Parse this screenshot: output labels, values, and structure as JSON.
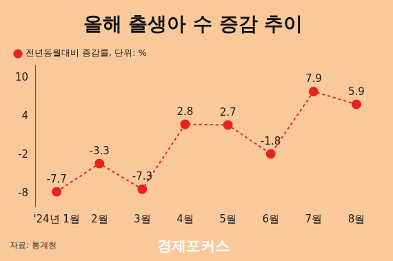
{
  "chart_data": {
    "type": "line",
    "title": "올해 출생아 수 증감 추이",
    "categories": [
      "'24년 1월",
      "2월",
      "3월",
      "4월",
      "5월",
      "6월",
      "7월",
      "8월"
    ],
    "series": [
      {
        "name": "전년동월대비 증감률, 단위: %",
        "color": "#e8231f",
        "values": [
          -7.7,
          -3.3,
          -7.3,
          2.8,
          2.7,
          -1.8,
          7.9,
          5.9
        ]
      }
    ],
    "ylim": [
      -10,
      12
    ],
    "yticks": [
      -8,
      -2,
      4,
      10
    ],
    "grid": false,
    "legend": "top-left",
    "data_labels": true,
    "marker": "circle",
    "line_style": "dashed",
    "source": "자료: 통계청",
    "logo": "경제포커스"
  }
}
